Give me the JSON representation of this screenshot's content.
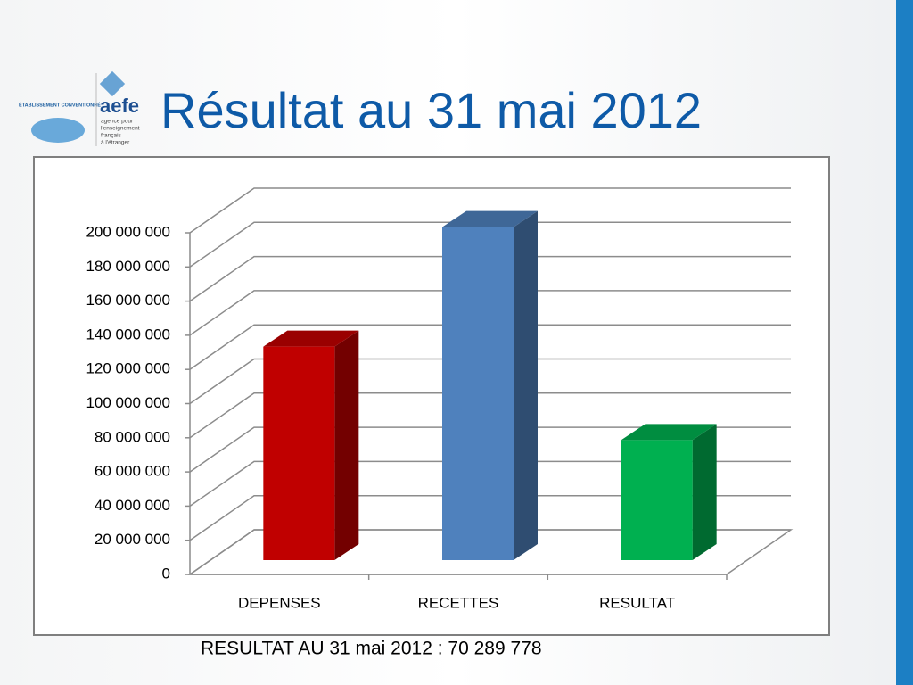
{
  "logo": {
    "badge": "ÉTABLISSEMENT CONVENTIONNÉ",
    "name": "aefe",
    "tagline": [
      "agence pour",
      "l'enseignement",
      "français",
      "à l'étranger"
    ]
  },
  "chart_data": {
    "type": "bar3d",
    "title": "Résultat au 31 mai 2012",
    "categories": [
      "DEPENSES",
      "RECETTES",
      "RESULTAT"
    ],
    "values": [
      125000000,
      195000000,
      70289778
    ],
    "colors": [
      "#c00000",
      "#4f81bd",
      "#00b050"
    ],
    "ylim": [
      0,
      200000000
    ],
    "yticks": [
      0,
      {
        "value": 20000000,
        "label": "20 000 000"
      },
      {
        "value": 40000000,
        "label": "40 000 000"
      },
      {
        "value": 60000000,
        "label": "60 000 000"
      },
      {
        "value": 80000000,
        "label": "80 000 000"
      },
      {
        "value": 100000000,
        "label": "100 000 000"
      },
      {
        "value": 120000000,
        "label": "120 000 000"
      },
      {
        "value": 140000000,
        "label": "140 000 000"
      },
      {
        "value": 160000000,
        "label": "160 000 000"
      },
      {
        "value": 180000000,
        "label": "180 000 000"
      },
      {
        "value": 200000000,
        "label": "200 000 000"
      }
    ],
    "grid": true,
    "caption": "RESULTAT AU 31 mai 2012 : 70 289 778"
  }
}
